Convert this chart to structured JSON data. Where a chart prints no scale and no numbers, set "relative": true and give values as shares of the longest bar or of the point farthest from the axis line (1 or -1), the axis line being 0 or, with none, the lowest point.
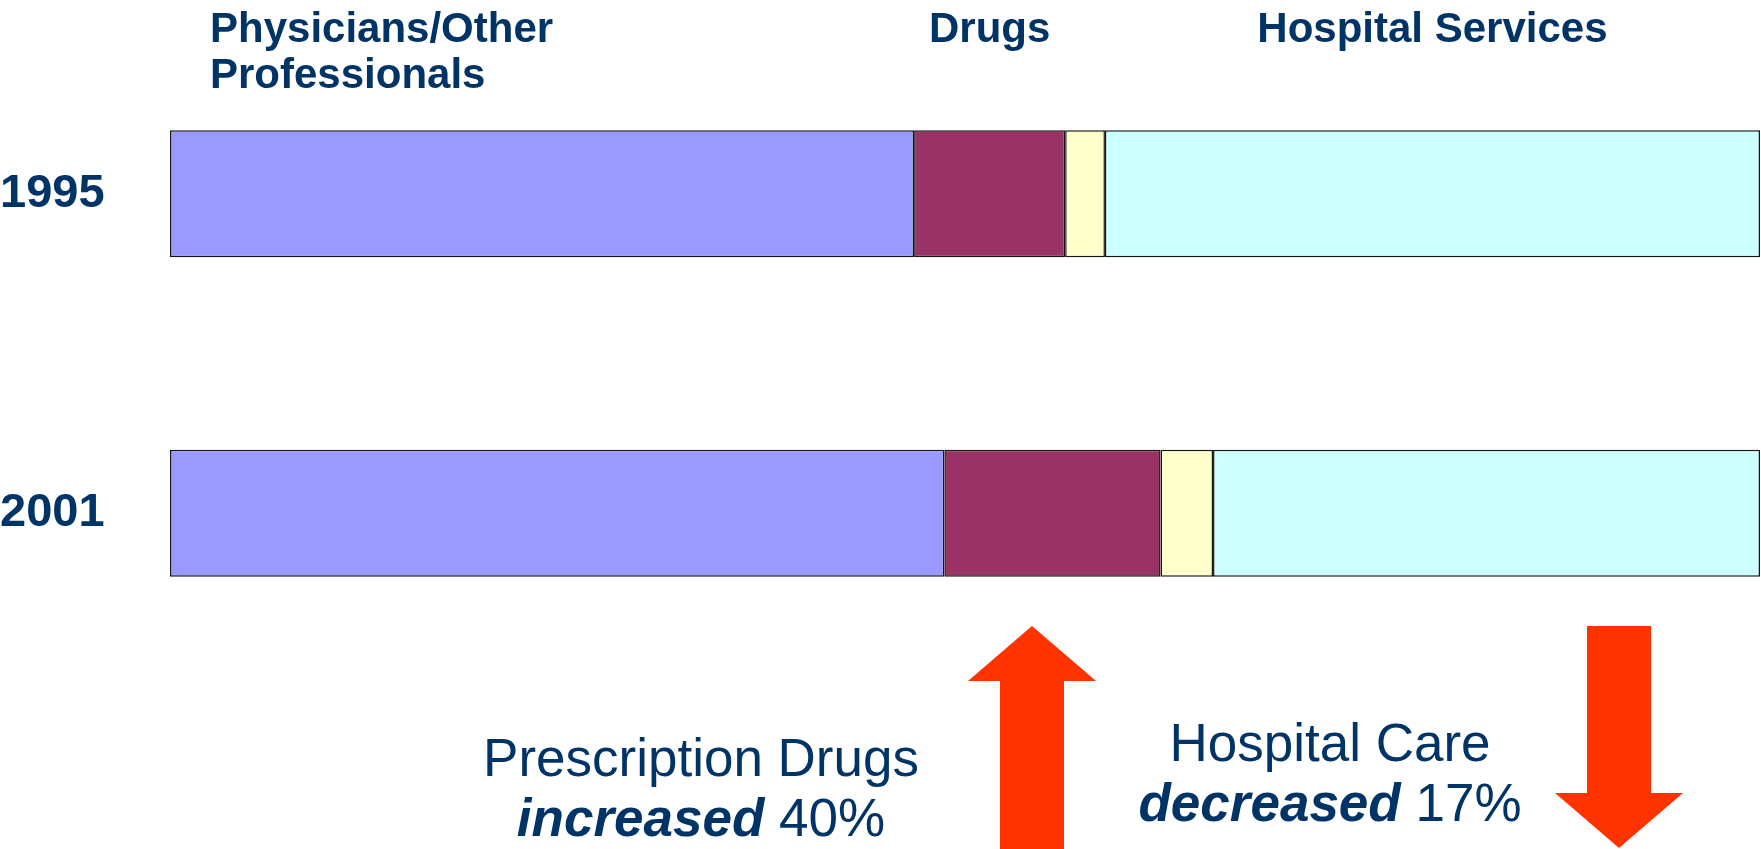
{
  "chart_data": {
    "type": "bar",
    "orientation": "horizontal",
    "stacked": true,
    "relative": true,
    "categories": [
      "1995",
      "2001"
    ],
    "series": [
      {
        "name": "Physicians/Other Professionals",
        "color": "#9999ff",
        "values": [
          0.468,
          0.487
        ]
      },
      {
        "name": "Drugs",
        "color": "#993366",
        "values": [
          0.095,
          0.136
        ]
      },
      {
        "color": "#ffffcc",
        "values": [
          0.025,
          0.033
        ]
      },
      {
        "name": "Hospital Services",
        "color": "#ccffff",
        "values": [
          0.412,
          0.344
        ]
      }
    ],
    "annotations": [
      "Prescription Drugs\nincreased 40%",
      "Hospital Care\ndecreased 17%"
    ]
  }
}
